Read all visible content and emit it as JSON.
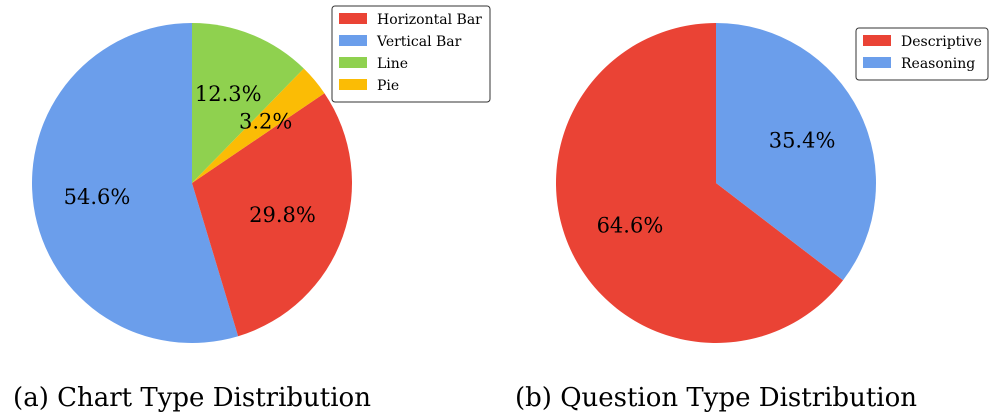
{
  "chart_data": [
    {
      "type": "pie",
      "caption": "(a) Chart Type Distribution",
      "slices": [
        {
          "label": "Horizontal Bar",
          "value": 29.8,
          "display": "29.8%",
          "color": "#EA4335"
        },
        {
          "label": "Vertical Bar",
          "value": 54.6,
          "display": "54.6%",
          "color": "#6B9EEB"
        },
        {
          "label": "Line",
          "value": 12.3,
          "display": "12.3%",
          "color": "#8FD14F"
        },
        {
          "label": "Pie",
          "value": 3.2,
          "display": "3.2%",
          "color": "#FBBC05"
        }
      ],
      "legend_position": "top-right"
    },
    {
      "type": "pie",
      "caption": "(b) Question Type Distribution",
      "slices": [
        {
          "label": "Descriptive",
          "value": 64.6,
          "display": "64.6%",
          "color": "#EA4335"
        },
        {
          "label": "Reasoning",
          "value": 35.4,
          "display": "35.4%",
          "color": "#6B9EEB"
        }
      ],
      "legend_position": "top-right"
    }
  ]
}
